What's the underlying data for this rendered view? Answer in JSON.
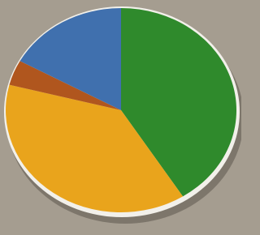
{
  "chart_data": {
    "type": "pie",
    "values": [
      41,
      38,
      4,
      17
    ],
    "colors": [
      "#2f8a2c",
      "#e9a41c",
      "#b0561e",
      "#4070ae"
    ],
    "start_angle": 0,
    "direction": "clockwise"
  }
}
